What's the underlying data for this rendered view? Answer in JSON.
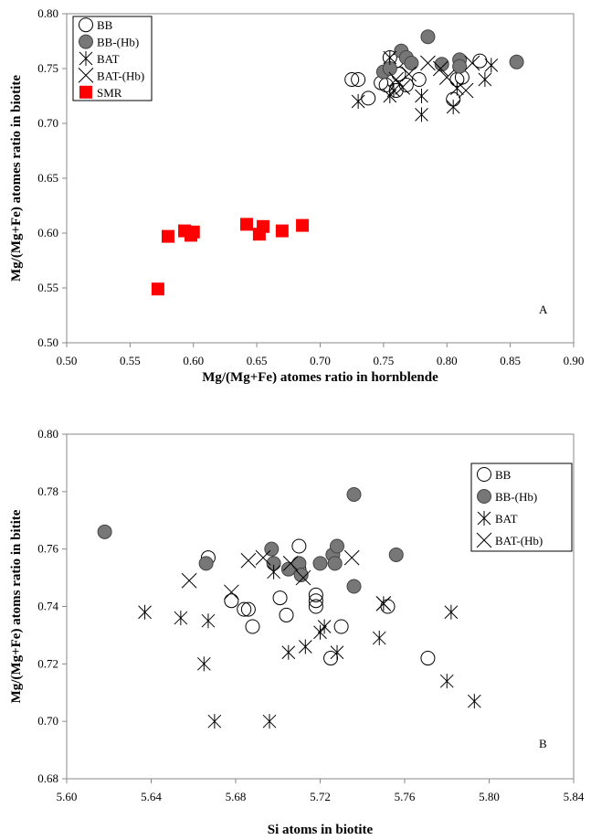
{
  "chart_data": [
    {
      "type": "scatter",
      "annotation": "A",
      "xlabel": "Mg/(Mg+Fe) atomes ratio in hornblende",
      "ylabel": "Mg/(Mg+Fe) atomes ratio in biotite",
      "xlim": [
        0.5,
        0.9
      ],
      "ylim": [
        0.5,
        0.8
      ],
      "xticks": [
        "0.50",
        "0.55",
        "0.60",
        "0.65",
        "0.70",
        "0.75",
        "0.80",
        "0.85",
        "0.90"
      ],
      "yticks": [
        "0.50",
        "0.55",
        "0.60",
        "0.65",
        "0.70",
        "0.75",
        "0.80"
      ],
      "grid": false,
      "legend_position": "top-left",
      "series": [
        {
          "name": "BB",
          "marker": "open-circle",
          "points": [
            [
              0.725,
              0.74
            ],
            [
              0.73,
              0.74
            ],
            [
              0.738,
              0.723
            ],
            [
              0.748,
              0.737
            ],
            [
              0.752,
              0.735
            ],
            [
              0.755,
              0.76
            ],
            [
              0.76,
              0.73
            ],
            [
              0.762,
              0.745
            ],
            [
              0.768,
              0.735
            ],
            [
              0.778,
              0.74
            ],
            [
              0.805,
              0.722
            ],
            [
              0.808,
              0.74
            ],
            [
              0.812,
              0.742
            ],
            [
              0.826,
              0.757
            ],
            [
              0.76,
              0.757
            ]
          ]
        },
        {
          "name": "BB-(Hb)",
          "marker": "filled-circle",
          "color": "#777777",
          "points": [
            [
              0.75,
              0.747
            ],
            [
              0.764,
              0.766
            ],
            [
              0.768,
              0.76
            ],
            [
              0.772,
              0.755
            ],
            [
              0.785,
              0.779
            ],
            [
              0.796,
              0.754
            ],
            [
              0.81,
              0.758
            ],
            [
              0.81,
              0.752
            ],
            [
              0.855,
              0.756
            ],
            [
              0.755,
              0.75
            ]
          ]
        },
        {
          "name": "BAT",
          "marker": "asterisk",
          "points": [
            [
              0.73,
              0.72
            ],
            [
              0.755,
              0.725
            ],
            [
              0.758,
              0.73
            ],
            [
              0.78,
              0.708
            ],
            [
              0.78,
              0.725
            ],
            [
              0.808,
              0.732
            ],
            [
              0.835,
              0.753
            ],
            [
              0.83,
              0.74
            ],
            [
              0.805,
              0.715
            ],
            [
              0.755,
              0.76
            ]
          ]
        },
        {
          "name": "BAT-(Hb)",
          "marker": "cross",
          "points": [
            [
              0.765,
              0.733
            ],
            [
              0.77,
              0.745
            ],
            [
              0.785,
              0.755
            ],
            [
              0.795,
              0.75
            ],
            [
              0.8,
              0.742
            ],
            [
              0.815,
              0.73
            ],
            [
              0.82,
              0.755
            ],
            [
              0.76,
              0.74
            ]
          ]
        },
        {
          "name": "SMR",
          "marker": "square",
          "color": "#ff0000",
          "points": [
            [
              0.572,
              0.549
            ],
            [
              0.58,
              0.597
            ],
            [
              0.593,
              0.602
            ],
            [
              0.598,
              0.598
            ],
            [
              0.6,
              0.601
            ],
            [
              0.642,
              0.608
            ],
            [
              0.652,
              0.599
            ],
            [
              0.655,
              0.606
            ],
            [
              0.67,
              0.602
            ],
            [
              0.686,
              0.607
            ]
          ]
        }
      ]
    },
    {
      "type": "scatter",
      "annotation": "B",
      "xlabel": "Si atoms in biotite",
      "ylabel": "Mg/(Mg+Fe) atoms ratio in bitite",
      "xlim": [
        5.6,
        5.84
      ],
      "ylim": [
        0.68,
        0.8
      ],
      "xticks": [
        "5.60",
        "5.64",
        "5.68",
        "5.72",
        "5.76",
        "5.80",
        "5.84"
      ],
      "yticks": [
        "0.68",
        "0.70",
        "0.72",
        "0.74",
        "0.76",
        "0.78",
        "0.80"
      ],
      "grid": false,
      "legend_position": "top-right",
      "series": [
        {
          "name": "BB",
          "marker": "open-circle",
          "points": [
            [
              5.667,
              0.757
            ],
            [
              5.678,
              0.742
            ],
            [
              5.684,
              0.739
            ],
            [
              5.686,
              0.739
            ],
            [
              5.688,
              0.733
            ],
            [
              5.701,
              0.743
            ],
            [
              5.704,
              0.737
            ],
            [
              5.71,
              0.761
            ],
            [
              5.718,
              0.744
            ],
            [
              5.718,
              0.742
            ],
            [
              5.718,
              0.74
            ],
            [
              5.725,
              0.722
            ],
            [
              5.73,
              0.733
            ],
            [
              5.752,
              0.74
            ],
            [
              5.771,
              0.722
            ],
            [
              5.71,
              0.753
            ]
          ]
        },
        {
          "name": "BB-(Hb)",
          "marker": "filled-circle",
          "color": "#777777",
          "points": [
            [
              5.618,
              0.766
            ],
            [
              5.666,
              0.755
            ],
            [
              5.697,
              0.76
            ],
            [
              5.698,
              0.755
            ],
            [
              5.705,
              0.753
            ],
            [
              5.71,
              0.755
            ],
            [
              5.711,
              0.751
            ],
            [
              5.72,
              0.755
            ],
            [
              5.726,
              0.758
            ],
            [
              5.727,
              0.755
            ],
            [
              5.728,
              0.761
            ],
            [
              5.736,
              0.779
            ],
            [
              5.736,
              0.747
            ],
            [
              5.756,
              0.758
            ]
          ]
        },
        {
          "name": "BAT",
          "marker": "asterisk",
          "points": [
            [
              5.637,
              0.738
            ],
            [
              5.654,
              0.736
            ],
            [
              5.667,
              0.735
            ],
            [
              5.665,
              0.72
            ],
            [
              5.67,
              0.7
            ],
            [
              5.696,
              0.7
            ],
            [
              5.698,
              0.752
            ],
            [
              5.705,
              0.724
            ],
            [
              5.713,
              0.726
            ],
            [
              5.72,
              0.731
            ],
            [
              5.722,
              0.733
            ],
            [
              5.728,
              0.724
            ],
            [
              5.748,
              0.729
            ],
            [
              5.75,
              0.741
            ],
            [
              5.78,
              0.714
            ],
            [
              5.782,
              0.738
            ],
            [
              5.793,
              0.707
            ]
          ]
        },
        {
          "name": "BAT-(Hb)",
          "marker": "cross",
          "points": [
            [
              5.658,
              0.749
            ],
            [
              5.678,
              0.745
            ],
            [
              5.686,
              0.756
            ],
            [
              5.693,
              0.757
            ],
            [
              5.706,
              0.755
            ],
            [
              5.712,
              0.75
            ],
            [
              5.735,
              0.757
            ],
            [
              5.75,
              0.741
            ]
          ]
        }
      ]
    }
  ]
}
